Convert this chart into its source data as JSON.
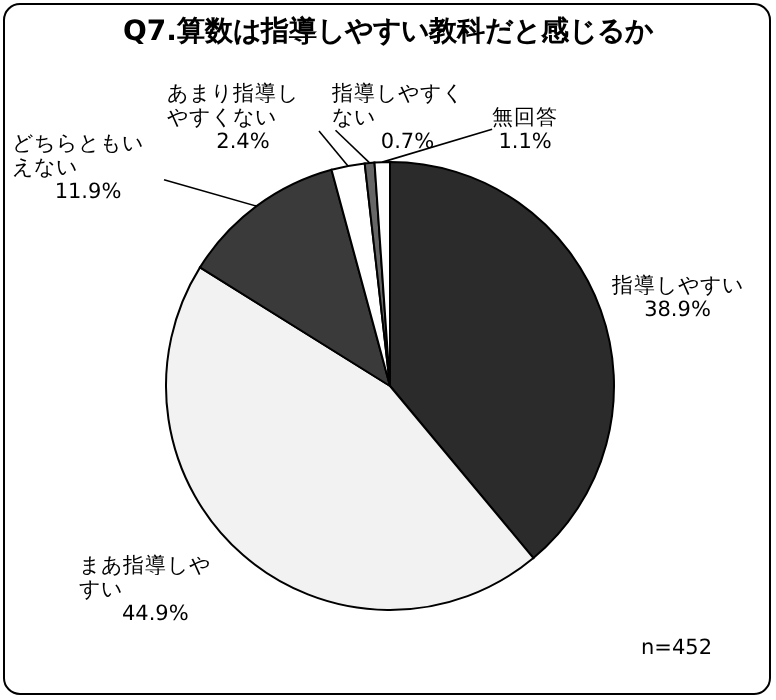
{
  "chart_data": {
    "type": "pie",
    "title": "Q7.算数は指導しやすい教科だと感じるか",
    "categories": [
      "指導しやすい",
      "まあ指導しやすい",
      "どちらともいえない",
      "あまり指導しやすくない",
      "指導しやすくない",
      "無回答"
    ],
    "values": [
      38.9,
      44.9,
      11.9,
      2.4,
      0.7,
      1.1
    ],
    "value_labels": [
      "38.9%",
      "44.9%",
      "11.9%",
      "2.4%",
      "0.7%",
      "1.1%"
    ],
    "colors": [
      "#2b2b2b",
      "#f2f2f2",
      "#3a3a3a",
      "#ffffff",
      "#666666",
      "#ffffff"
    ],
    "annotations": [
      "n=452"
    ]
  }
}
